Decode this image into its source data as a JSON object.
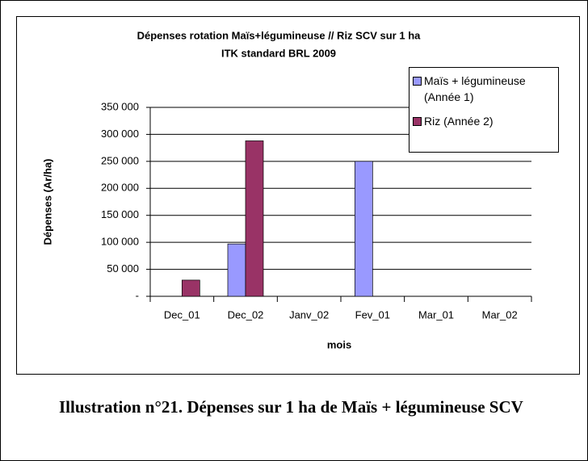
{
  "chart_data": {
    "type": "bar",
    "title": "Dépenses rotation Maïs+légumineuse // Riz SCV sur 1 ha",
    "subtitle": "ITK standard BRL 2009",
    "x_label": "mois",
    "y_label": "Dépenses (Ar/ha)",
    "categories": [
      "Dec_01",
      "Dec_02",
      "Janv_02",
      "Fev_01",
      "Mar_01",
      "Mar_02"
    ],
    "series": [
      {
        "name": "Maïs + légumineuse (Année 1)",
        "color": "#9999ff",
        "values": [
          null,
          97000,
          null,
          250000,
          null,
          null
        ]
      },
      {
        "name": "Riz (Année 2)",
        "color": "#993366",
        "values": [
          30000,
          288000,
          null,
          null,
          null,
          null
        ]
      }
    ],
    "ylim": [
      0,
      350000
    ],
    "yticks": [
      {
        "value": 0,
        "label": "-"
      },
      {
        "value": 50000,
        "label": "50 000"
      },
      {
        "value": 100000,
        "label": "100 000"
      },
      {
        "value": 150000,
        "label": "150 000"
      },
      {
        "value": 200000,
        "label": "200 000"
      },
      {
        "value": 250000,
        "label": "250 000"
      },
      {
        "value": 300000,
        "label": "300 000"
      },
      {
        "value": 350000,
        "label": "350 000"
      }
    ],
    "grid": true
  },
  "caption": "Illustration n°21.   Dépenses sur 1 ha de Maïs + légumineuse SCV"
}
